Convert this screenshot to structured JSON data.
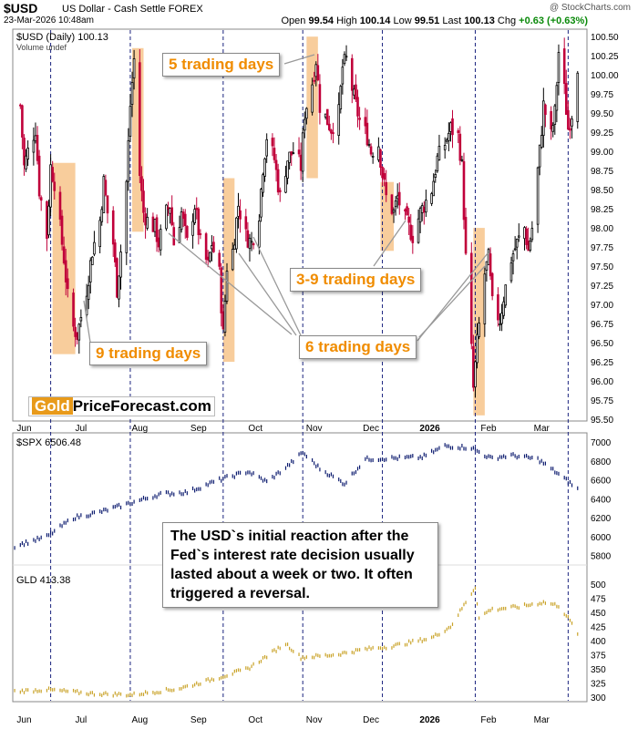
{
  "header": {
    "symbol": "$USD",
    "description": "US Dollar - Cash Settle FOREX",
    "datetime": "23-Mar-2026 10:48am",
    "brand": "@ StockCharts.com",
    "open_label": "Open",
    "open": "99.54",
    "high_label": "High",
    "high": "100.14",
    "low_label": "Low",
    "low": "99.51",
    "last_label": "Last",
    "last": "100.13",
    "chg_label": "Chg",
    "chg": "+0.63 (+0.63%)"
  },
  "colors": {
    "up": "#000000",
    "down": "#c0003a",
    "highlight": "#f7c48b",
    "spx": "#0b1a6e",
    "gld": "#c9a227",
    "annotation": "#f08c00"
  },
  "chart_data": [
    {
      "type": "candlestick",
      "title": "$USD (Daily) 100.13",
      "subtitle": "Volume undef",
      "y_ticks": [
        "95.50",
        "95.75",
        "96.00",
        "96.25",
        "96.50",
        "96.75",
        "97.00",
        "97.25",
        "97.50",
        "97.75",
        "98.00",
        "98.25",
        "98.50",
        "98.75",
        "99.00",
        "99.25",
        "99.50",
        "99.75",
        "100.00",
        "100.25",
        "100.50"
      ],
      "ylim": [
        95.5,
        100.55
      ],
      "x_tick_labels": [
        "Jun",
        "Jul",
        "Aug",
        "Sep",
        "Oct",
        "Nov",
        "Dec",
        "2026",
        "Feb",
        "Mar"
      ],
      "last": 100.13,
      "path": [
        [
          "2025-06-02",
          99.6
        ],
        [
          "2025-06-04",
          98.8
        ],
        [
          "2025-06-06",
          99.0
        ],
        [
          "2025-06-10",
          99.3
        ],
        [
          "2025-06-12",
          98.5
        ],
        [
          "2025-06-16",
          97.9
        ],
        [
          "2025-06-18",
          98.8
        ],
        [
          "2025-06-20",
          98.6
        ],
        [
          "2025-06-23",
          98.0
        ],
        [
          "2025-06-25",
          97.6
        ],
        [
          "2025-06-27",
          97.1
        ],
        [
          "2025-06-30",
          96.7
        ],
        [
          "2025-07-02",
          96.6
        ],
        [
          "2025-07-07",
          97.2
        ],
        [
          "2025-07-10",
          97.7
        ],
        [
          "2025-07-14",
          98.1
        ],
        [
          "2025-07-16",
          98.6
        ],
        [
          "2025-07-18",
          98.2
        ],
        [
          "2025-07-21",
          97.8
        ],
        [
          "2025-07-23",
          97.2
        ],
        [
          "2025-07-25",
          97.7
        ],
        [
          "2025-07-28",
          98.6
        ],
        [
          "2025-07-30",
          99.6
        ],
        [
          "2025-08-01",
          100.2
        ],
        [
          "2025-08-04",
          98.7
        ],
        [
          "2025-08-06",
          98.2
        ],
        [
          "2025-08-08",
          98.1
        ],
        [
          "2025-08-12",
          98.0
        ],
        [
          "2025-08-14",
          97.8
        ],
        [
          "2025-08-18",
          98.2
        ],
        [
          "2025-08-20",
          98.3
        ],
        [
          "2025-08-22",
          97.8
        ],
        [
          "2025-08-26",
          98.2
        ],
        [
          "2025-08-29",
          97.8
        ],
        [
          "2025-09-02",
          98.3
        ],
        [
          "2025-09-05",
          97.8
        ],
        [
          "2025-09-09",
          97.5
        ],
        [
          "2025-09-11",
          97.8
        ],
        [
          "2025-09-15",
          97.4
        ],
        [
          "2025-09-17",
          96.6
        ],
        [
          "2025-09-19",
          97.5
        ],
        [
          "2025-09-22",
          97.7
        ],
        [
          "2025-09-25",
          98.3
        ],
        [
          "2025-09-29",
          97.9
        ],
        [
          "2025-10-02",
          97.8
        ],
        [
          "2025-10-06",
          98.2
        ],
        [
          "2025-10-08",
          98.8
        ],
        [
          "2025-10-10",
          99.2
        ],
        [
          "2025-10-14",
          98.9
        ],
        [
          "2025-10-17",
          98.4
        ],
        [
          "2025-10-21",
          98.9
        ],
        [
          "2025-10-24",
          99.0
        ],
        [
          "2025-10-28",
          98.8
        ],
        [
          "2025-10-30",
          99.5
        ],
        [
          "2025-11-03",
          99.9
        ],
        [
          "2025-11-05",
          100.2
        ],
        [
          "2025-11-07",
          99.6
        ],
        [
          "2025-11-11",
          99.4
        ],
        [
          "2025-11-13",
          99.3
        ],
        [
          "2025-11-17",
          99.5
        ],
        [
          "2025-11-19",
          100.1
        ],
        [
          "2025-11-21",
          100.2
        ],
        [
          "2025-11-25",
          99.7
        ],
        [
          "2025-11-28",
          99.4
        ],
        [
          "2025-12-02",
          99.2
        ],
        [
          "2025-12-04",
          99.0
        ],
        [
          "2025-12-08",
          99.1
        ],
        [
          "2025-12-10",
          98.7
        ],
        [
          "2025-12-12",
          98.4
        ],
        [
          "2025-12-16",
          98.2
        ],
        [
          "2025-12-18",
          98.4
        ],
        [
          "2025-12-22",
          98.1
        ],
        [
          "2025-12-26",
          97.9
        ],
        [
          "2025-12-30",
          98.2
        ],
        [
          "2026-01-05",
          98.5
        ],
        [
          "2026-01-08",
          98.9
        ],
        [
          "2026-01-12",
          99.1
        ],
        [
          "2026-01-15",
          99.3
        ],
        [
          "2026-01-19",
          99.2
        ],
        [
          "2026-01-21",
          98.8
        ],
        [
          "2026-01-23",
          97.6
        ],
        [
          "2026-01-26",
          96.4
        ],
        [
          "2026-01-27",
          95.9
        ],
        [
          "2026-01-29",
          96.5
        ],
        [
          "2026-02-02",
          97.4
        ],
        [
          "2026-02-04",
          97.6
        ],
        [
          "2026-02-06",
          97.0
        ],
        [
          "2026-02-10",
          96.8
        ],
        [
          "2026-02-12",
          97.1
        ],
        [
          "2026-02-16",
          97.6
        ],
        [
          "2026-02-19",
          97.8
        ],
        [
          "2026-02-23",
          98.0
        ],
        [
          "2026-02-25",
          97.7
        ],
        [
          "2026-02-27",
          98.0
        ],
        [
          "2026-03-03",
          99.0
        ],
        [
          "2026-03-05",
          99.6
        ],
        [
          "2026-03-09",
          99.2
        ],
        [
          "2026-03-11",
          99.5
        ],
        [
          "2026-03-13",
          100.3
        ],
        [
          "2026-03-16",
          99.8
        ],
        [
          "2026-03-18",
          99.3
        ],
        [
          "2026-03-20",
          99.5
        ],
        [
          "2026-03-23",
          100.13
        ]
      ],
      "highlight_zones": [
        [
          "2025-06-19",
          "2025-07-01",
          96.35,
          98.85
        ],
        [
          "2025-07-31",
          "2025-08-06",
          97.95,
          100.35
        ],
        [
          "2025-09-17",
          "2025-09-23",
          96.25,
          98.65
        ],
        [
          "2025-10-31",
          "2025-11-06",
          98.65,
          100.5
        ],
        [
          "2025-12-09",
          "2025-12-16",
          97.7,
          98.6
        ],
        [
          "2026-01-27",
          "2026-02-02",
          95.55,
          98.0
        ]
      ],
      "fomc_dates": [
        "2025-06-18",
        "2025-07-30",
        "2025-09-17",
        "2025-10-29",
        "2025-12-10",
        "2026-01-28",
        "2026-03-18"
      ],
      "annotations": [
        "5 trading days",
        "9 trading days",
        "3-9 trading days",
        "6 trading days"
      ]
    },
    {
      "type": "line",
      "title": "$SPX 6506.48",
      "y_ticks": [
        "5800",
        "6000",
        "6200",
        "6400",
        "6600",
        "6800",
        "7000"
      ],
      "ylim": [
        5700,
        7050
      ],
      "path": [
        [
          "2025-05-30",
          5900
        ],
        [
          "2025-06-16",
          6000
        ],
        [
          "2025-06-30",
          6200
        ],
        [
          "2025-07-14",
          6260
        ],
        [
          "2025-07-31",
          6360
        ],
        [
          "2025-08-15",
          6450
        ],
        [
          "2025-08-29",
          6470
        ],
        [
          "2025-09-15",
          6600
        ],
        [
          "2025-09-30",
          6690
        ],
        [
          "2025-10-10",
          6580
        ],
        [
          "2025-10-20",
          6730
        ],
        [
          "2025-10-29",
          6890
        ],
        [
          "2025-11-07",
          6720
        ],
        [
          "2025-11-20",
          6560
        ],
        [
          "2025-12-01",
          6820
        ],
        [
          "2025-12-15",
          6830
        ],
        [
          "2025-12-31",
          6840
        ],
        [
          "2026-01-12",
          6960
        ],
        [
          "2026-01-26",
          6940
        ],
        [
          "2026-02-05",
          6830
        ],
        [
          "2026-02-16",
          6860
        ],
        [
          "2026-03-02",
          6820
        ],
        [
          "2026-03-13",
          6660
        ],
        [
          "2026-03-20",
          6550
        ],
        [
          "2026-03-23",
          6506.48
        ]
      ]
    },
    {
      "type": "line",
      "title": "GLD 413.38",
      "y_ticks": [
        "300",
        "325",
        "350",
        "375",
        "400",
        "425",
        "450",
        "475",
        "500"
      ],
      "ylim": [
        295,
        510
      ],
      "path": [
        [
          "2025-05-30",
          310
        ],
        [
          "2025-06-16",
          313
        ],
        [
          "2025-07-10",
          306
        ],
        [
          "2025-07-31",
          304
        ],
        [
          "2025-08-25",
          315
        ],
        [
          "2025-09-15",
          335
        ],
        [
          "2025-09-30",
          350
        ],
        [
          "2025-10-20",
          395
        ],
        [
          "2025-10-28",
          370
        ],
        [
          "2025-11-15",
          375
        ],
        [
          "2025-12-01",
          385
        ],
        [
          "2025-12-15",
          390
        ],
        [
          "2026-01-05",
          405
        ],
        [
          "2026-01-15",
          425
        ],
        [
          "2026-01-28",
          495
        ],
        [
          "2026-01-30",
          440
        ],
        [
          "2026-02-05",
          455
        ],
        [
          "2026-02-20",
          460
        ],
        [
          "2026-03-05",
          468
        ],
        [
          "2026-03-13",
          462
        ],
        [
          "2026-03-18",
          440
        ],
        [
          "2026-03-23",
          413.38
        ]
      ]
    }
  ],
  "footnote_x_labels": [
    "Jun",
    "Jul",
    "Aug",
    "Sep",
    "Oct",
    "Nov",
    "Dec",
    "2026",
    "Feb",
    "Mar"
  ],
  "note_text": "The USD`s initial reaction after the Fed`s interest rate decision usually lasted about a week or two. It often triggered a reversal.",
  "watermark": {
    "gold": "Gold",
    "rest": "PriceForecast.com"
  }
}
